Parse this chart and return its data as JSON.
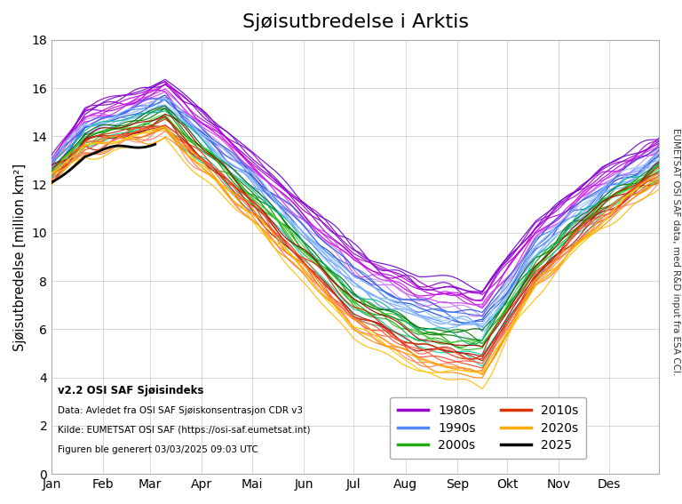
{
  "title": "Sjøisutbredelse i Arktis",
  "ylabel": "Sjøisutbredelse [million km²]",
  "xlabel_ticks": [
    "Jan",
    "Feb",
    "Mar",
    "Apr",
    "Mai",
    "Jun",
    "Jul",
    "Aug",
    "Sep",
    "Okt",
    "Nov",
    "Des"
  ],
  "ylim": [
    0,
    18
  ],
  "yticks": [
    0,
    2,
    4,
    6,
    8,
    10,
    12,
    14,
    16,
    18
  ],
  "text_version": "v2.2 OSI SAF Sjøisindeks",
  "text_data": "Data: Avledet fra OSI SAF Sjøiskonsentrasjon CDR v3",
  "text_source": "Kilde: EUMETSAT OSI SAF (https://osi-saf.eumetsat.int)",
  "text_date": "Figuren ble generert 03/03/2025 09:03 UTC",
  "right_label": "EUMETSAT OSI SAF data, med R&D input fra ESA CCI.",
  "legend_entries": [
    "1980s",
    "1990s",
    "2000s",
    "2010s",
    "2020s",
    "2025"
  ],
  "decade_colors": {
    "1979": "#6600CC",
    "1980": "#7700CC",
    "1981": "#8800CC",
    "1982": "#9900CC",
    "1983": "#AA00DD",
    "1984": "#BB00DD",
    "1985": "#CC00DD",
    "1986": "#CC22EE",
    "1987": "#CC44EE",
    "1988": "#CC66FF",
    "1989": "#CC88FF",
    "1990": "#1144CC",
    "1991": "#2255DD",
    "1992": "#3366EE",
    "1993": "#4477EE",
    "1994": "#5588FF",
    "1995": "#6699FF",
    "1996": "#77AAFF",
    "1997": "#88BBFF",
    "1998": "#99CCFF",
    "1999": "#AADDFF",
    "2000": "#006600",
    "2001": "#007700",
    "2002": "#008800",
    "2003": "#119900",
    "2004": "#22AA11",
    "2005": "#33BB22",
    "2006": "#44CC33",
    "2007": "#00BB88",
    "2008": "#00CC99",
    "2009": "#00DDAA",
    "2010": "#990000",
    "2011": "#AA0000",
    "2012": "#BB1100",
    "2013": "#CC2200",
    "2014": "#DD3300",
    "2015": "#EE4422",
    "2016": "#FF5533",
    "2017": "#FF6644",
    "2018": "#FF7755",
    "2019": "#FF8866",
    "2020": "#FF8800",
    "2021": "#FF9900",
    "2022": "#FFAA00",
    "2023": "#FFBB00",
    "2024": "#FFCC00",
    "2025": "#000000"
  }
}
